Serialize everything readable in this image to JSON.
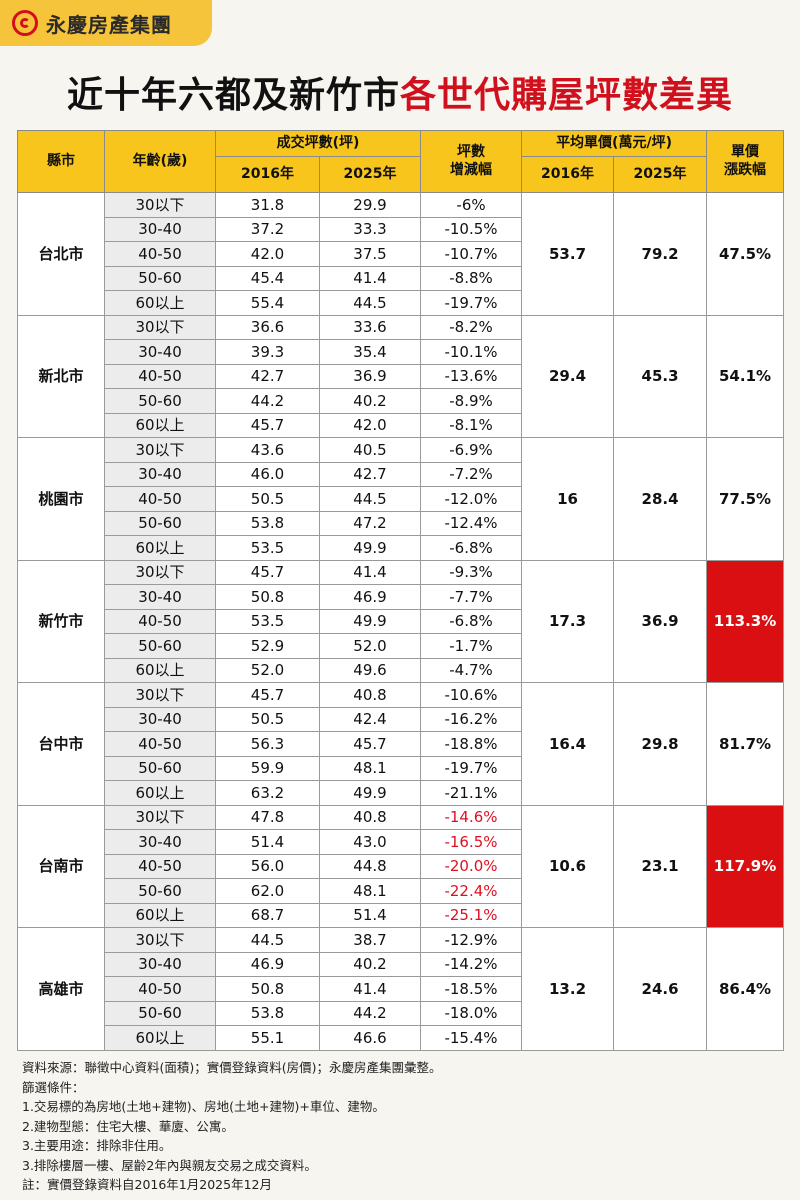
{
  "brand": {
    "name": "永慶房產集團"
  },
  "title": {
    "part1": "近十年六都及新竹市",
    "part2": "各世代購屋坪數差異"
  },
  "headers": {
    "county": "縣市",
    "age": "年齡(歲)",
    "area_group": "成交坪數(坪)",
    "area_2016": "2016年",
    "area_2025": "2025年",
    "change_line1": "坪數",
    "change_line2": "增減幅",
    "price_group": "平均單價(萬元/坪)",
    "price_2016": "2016年",
    "price_2025": "2025年",
    "growth_line1": "單價",
    "growth_line2": "漲跌幅"
  },
  "cities": [
    {
      "name": "台北市",
      "price2016": "53.7",
      "price2025": "79.2",
      "growth": "47.5%",
      "highlight": false,
      "red_change": false,
      "rows": [
        {
          "age": "30以下",
          "a2016": "31.8",
          "a2025": "29.9",
          "change": "-6%"
        },
        {
          "age": "30-40",
          "a2016": "37.2",
          "a2025": "33.3",
          "change": "-10.5%"
        },
        {
          "age": "40-50",
          "a2016": "42.0",
          "a2025": "37.5",
          "change": "-10.7%"
        },
        {
          "age": "50-60",
          "a2016": "45.4",
          "a2025": "41.4",
          "change": "-8.8%"
        },
        {
          "age": "60以上",
          "a2016": "55.4",
          "a2025": "44.5",
          "change": "-19.7%"
        }
      ]
    },
    {
      "name": "新北市",
      "price2016": "29.4",
      "price2025": "45.3",
      "growth": "54.1%",
      "highlight": false,
      "red_change": false,
      "rows": [
        {
          "age": "30以下",
          "a2016": "36.6",
          "a2025": "33.6",
          "change": "-8.2%"
        },
        {
          "age": "30-40",
          "a2016": "39.3",
          "a2025": "35.4",
          "change": "-10.1%"
        },
        {
          "age": "40-50",
          "a2016": "42.7",
          "a2025": "36.9",
          "change": "-13.6%"
        },
        {
          "age": "50-60",
          "a2016": "44.2",
          "a2025": "40.2",
          "change": "-8.9%"
        },
        {
          "age": "60以上",
          "a2016": "45.7",
          "a2025": "42.0",
          "change": "-8.1%"
        }
      ]
    },
    {
      "name": "桃園市",
      "price2016": "16",
      "price2025": "28.4",
      "growth": "77.5%",
      "highlight": false,
      "red_change": false,
      "rows": [
        {
          "age": "30以下",
          "a2016": "43.6",
          "a2025": "40.5",
          "change": "-6.9%"
        },
        {
          "age": "30-40",
          "a2016": "46.0",
          "a2025": "42.7",
          "change": "-7.2%"
        },
        {
          "age": "40-50",
          "a2016": "50.5",
          "a2025": "44.5",
          "change": "-12.0%"
        },
        {
          "age": "50-60",
          "a2016": "53.8",
          "a2025": "47.2",
          "change": "-12.4%"
        },
        {
          "age": "60以上",
          "a2016": "53.5",
          "a2025": "49.9",
          "change": "-6.8%"
        }
      ]
    },
    {
      "name": "新竹市",
      "price2016": "17.3",
      "price2025": "36.9",
      "growth": "113.3%",
      "highlight": true,
      "red_change": false,
      "rows": [
        {
          "age": "30以下",
          "a2016": "45.7",
          "a2025": "41.4",
          "change": "-9.3%"
        },
        {
          "age": "30-40",
          "a2016": "50.8",
          "a2025": "46.9",
          "change": "-7.7%"
        },
        {
          "age": "40-50",
          "a2016": "53.5",
          "a2025": "49.9",
          "change": "-6.8%"
        },
        {
          "age": "50-60",
          "a2016": "52.9",
          "a2025": "52.0",
          "change": "-1.7%"
        },
        {
          "age": "60以上",
          "a2016": "52.0",
          "a2025": "49.6",
          "change": "-4.7%"
        }
      ]
    },
    {
      "name": "台中市",
      "price2016": "16.4",
      "price2025": "29.8",
      "growth": "81.7%",
      "highlight": false,
      "red_change": false,
      "rows": [
        {
          "age": "30以下",
          "a2016": "45.7",
          "a2025": "40.8",
          "change": "-10.6%"
        },
        {
          "age": "30-40",
          "a2016": "50.5",
          "a2025": "42.4",
          "change": "-16.2%"
        },
        {
          "age": "40-50",
          "a2016": "56.3",
          "a2025": "45.7",
          "change": "-18.8%"
        },
        {
          "age": "50-60",
          "a2016": "59.9",
          "a2025": "48.1",
          "change": "-19.7%"
        },
        {
          "age": "60以上",
          "a2016": "63.2",
          "a2025": "49.9",
          "change": "-21.1%"
        }
      ]
    },
    {
      "name": "台南市",
      "price2016": "10.6",
      "price2025": "23.1",
      "growth": "117.9%",
      "highlight": true,
      "red_change": true,
      "rows": [
        {
          "age": "30以下",
          "a2016": "47.8",
          "a2025": "40.8",
          "change": "-14.6%"
        },
        {
          "age": "30-40",
          "a2016": "51.4",
          "a2025": "43.0",
          "change": "-16.5%"
        },
        {
          "age": "40-50",
          "a2016": "56.0",
          "a2025": "44.8",
          "change": "-20.0%"
        },
        {
          "age": "50-60",
          "a2016": "62.0",
          "a2025": "48.1",
          "change": "-22.4%"
        },
        {
          "age": "60以上",
          "a2016": "68.7",
          "a2025": "51.4",
          "change": "-25.1%"
        }
      ]
    },
    {
      "name": "高雄市",
      "price2016": "13.2",
      "price2025": "24.6",
      "growth": "86.4%",
      "highlight": false,
      "red_change": false,
      "rows": [
        {
          "age": "30以下",
          "a2016": "44.5",
          "a2025": "38.7",
          "change": "-12.9%"
        },
        {
          "age": "30-40",
          "a2016": "46.9",
          "a2025": "40.2",
          "change": "-14.2%"
        },
        {
          "age": "40-50",
          "a2016": "50.8",
          "a2025": "41.4",
          "change": "-18.5%"
        },
        {
          "age": "50-60",
          "a2016": "53.8",
          "a2025": "44.2",
          "change": "-18.0%"
        },
        {
          "age": "60以上",
          "a2016": "55.1",
          "a2025": "46.6",
          "change": "-15.4%"
        }
      ]
    }
  ],
  "notes": [
    "資料來源：聯徵中心資料(面積)；實價登錄資料(房價)；永慶房產集團彙整。",
    "篩選條件：",
    "1.交易標的為房地(土地+建物)、房地(土地+建物)+車位、建物。",
    "2.建物型態：住宅大樓、華廈、公寓。",
    "3.主要用途：排除非住用。",
    "3.排除樓層一樓、屋齡2年內與親友交易之成交資料。",
    "註：實價登錄資料自2016年1月2025年12月"
  ],
  "colors": {
    "header": "#f7c51c",
    "highlight": "#d90f12",
    "red_text": "#e01020"
  }
}
